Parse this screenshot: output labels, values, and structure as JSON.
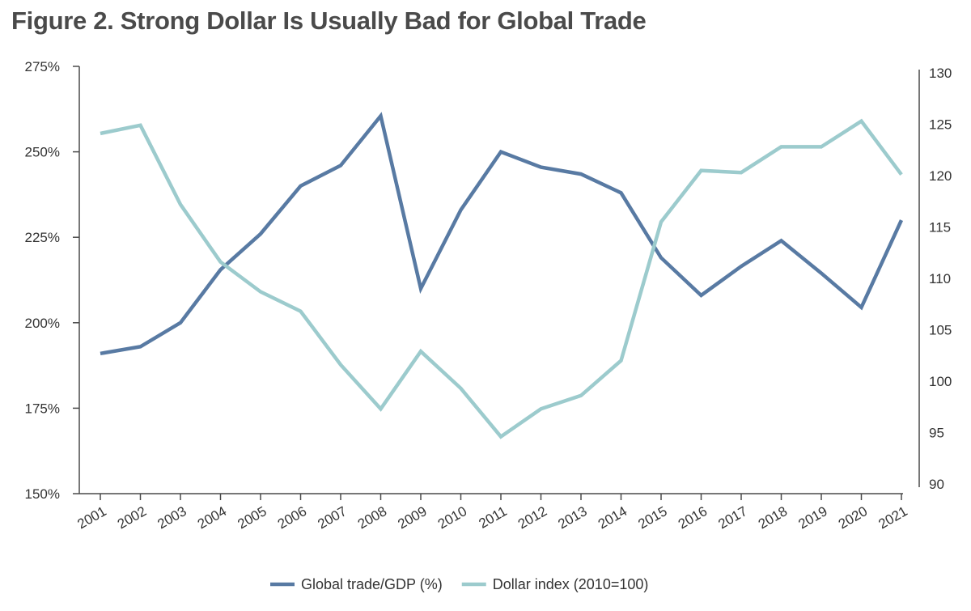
{
  "chart_data": {
    "type": "line",
    "title": "Figure 2. Strong Dollar Is Usually Bad for Global Trade",
    "xlabel": "",
    "ylabel": "",
    "x": [
      "2001",
      "2002",
      "2003",
      "2004",
      "2005",
      "2006",
      "2007",
      "2008",
      "2009",
      "2010",
      "2011",
      "2012",
      "2013",
      "2014",
      "2015",
      "2016",
      "2017",
      "2018",
      "2019",
      "2020",
      "2021"
    ],
    "y_left": {
      "ylim": [
        150,
        275
      ],
      "ticks": [
        150,
        175,
        200,
        225,
        250,
        275
      ],
      "tick_labels": [
        "150%",
        "175%",
        "200%",
        "225%",
        "250%",
        "275%"
      ]
    },
    "y_right": {
      "ylim": [
        90,
        130
      ],
      "ticks": [
        90,
        95,
        100,
        105,
        110,
        115,
        120,
        125,
        130
      ],
      "tick_labels": [
        "90",
        "95",
        "100",
        "105",
        "110",
        "115",
        "120",
        "125",
        "130"
      ]
    },
    "series": [
      {
        "name": "Global trade/GDP (%)",
        "axis": "left",
        "color": "#587aa3",
        "values": [
          191,
          193,
          200,
          215.5,
          226,
          240,
          246,
          260.5,
          210,
          233,
          250,
          245.5,
          243.5,
          238,
          219,
          208,
          216.5,
          224,
          214.5,
          204.5,
          230
        ]
      },
      {
        "name": "Dollar index (2010=100)",
        "axis": "right",
        "color": "#9ccbcd",
        "values": [
          124.1,
          124.9,
          117.2,
          111.6,
          108.7,
          106.8,
          101.6,
          97.3,
          102.9,
          99.3,
          94.6,
          97.3,
          98.6,
          102.0,
          115.5,
          120.5,
          120.3,
          122.8,
          122.8,
          125.3,
          120.1
        ]
      }
    ],
    "legend_position": "bottom-center",
    "grid": false
  }
}
